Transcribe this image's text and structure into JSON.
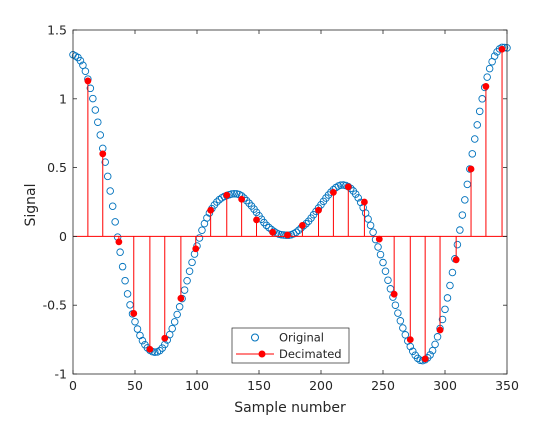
{
  "chart_data": {
    "type": "scatter",
    "title": "",
    "xlabel": "Sample number",
    "ylabel": "Signal",
    "xlim": [
      0,
      350
    ],
    "ylim": [
      -1,
      1.5
    ],
    "xticks": [
      "0",
      "50",
      "100",
      "150",
      "200",
      "250",
      "300",
      "350"
    ],
    "yticks": [
      "-1",
      "-0.5",
      "0",
      "0.5",
      "1",
      "1.5"
    ],
    "grid": false,
    "legend_position": "bottom-center",
    "series": [
      {
        "name": "Original",
        "style": "open-circle",
        "color": "#0072bd",
        "x_start": 0,
        "x_end": 350,
        "x_step": 2,
        "curve_points": [
          [
            0,
            1.32
          ],
          [
            5,
            1.29
          ],
          [
            10,
            1.2
          ],
          [
            15,
            1.04
          ],
          [
            20,
            0.83
          ],
          [
            25,
            0.59
          ],
          [
            30,
            0.33
          ],
          [
            35,
            0.05
          ],
          [
            40,
            -0.22
          ],
          [
            45,
            -0.46
          ],
          [
            50,
            -0.62
          ],
          [
            55,
            -0.74
          ],
          [
            60,
            -0.81
          ],
          [
            65,
            -0.84
          ],
          [
            70,
            -0.83
          ],
          [
            75,
            -0.77
          ],
          [
            80,
            -0.67
          ],
          [
            85,
            -0.54
          ],
          [
            90,
            -0.39
          ],
          [
            95,
            -0.22
          ],
          [
            100,
            -0.07
          ],
          [
            105,
            0.07
          ],
          [
            110,
            0.17
          ],
          [
            115,
            0.24
          ],
          [
            120,
            0.28
          ],
          [
            125,
            0.3
          ],
          [
            130,
            0.31
          ],
          [
            135,
            0.3
          ],
          [
            140,
            0.26
          ],
          [
            145,
            0.21
          ],
          [
            150,
            0.15
          ],
          [
            155,
            0.09
          ],
          [
            160,
            0.05
          ],
          [
            165,
            0.02
          ],
          [
            170,
            0.01
          ],
          [
            175,
            0.01
          ],
          [
            180,
            0.03
          ],
          [
            185,
            0.07
          ],
          [
            190,
            0.11
          ],
          [
            195,
            0.17
          ],
          [
            200,
            0.23
          ],
          [
            205,
            0.29
          ],
          [
            210,
            0.34
          ],
          [
            215,
            0.37
          ],
          [
            220,
            0.37
          ],
          [
            225,
            0.34
          ],
          [
            230,
            0.28
          ],
          [
            235,
            0.19
          ],
          [
            240,
            0.08
          ],
          [
            245,
            -0.05
          ],
          [
            250,
            -0.19
          ],
          [
            255,
            -0.35
          ],
          [
            260,
            -0.5
          ],
          [
            265,
            -0.64
          ],
          [
            270,
            -0.76
          ],
          [
            275,
            -0.85
          ],
          [
            280,
            -0.9
          ],
          [
            285,
            -0.89
          ],
          [
            290,
            -0.83
          ],
          [
            295,
            -0.7
          ],
          [
            300,
            -0.53
          ],
          [
            305,
            -0.31
          ],
          [
            310,
            -0.06
          ],
          [
            315,
            0.21
          ],
          [
            320,
            0.49
          ],
          [
            325,
            0.76
          ],
          [
            330,
            1.0
          ],
          [
            335,
            1.19
          ],
          [
            340,
            1.31
          ],
          [
            345,
            1.37
          ],
          [
            350,
            1.37
          ]
        ]
      },
      {
        "name": "Decimated",
        "style": "stem",
        "color": "#ff0000",
        "x": [
          12,
          24,
          37,
          49,
          62,
          74,
          87,
          99,
          111,
          124,
          136,
          148,
          161,
          173,
          185,
          198,
          210,
          222,
          235,
          247,
          259,
          272,
          284,
          296,
          309,
          321,
          333,
          346
        ],
        "values": [
          1.13,
          0.6,
          -0.04,
          -0.56,
          -0.82,
          -0.74,
          -0.45,
          -0.09,
          0.19,
          0.3,
          0.27,
          0.12,
          0.03,
          0.01,
          0.08,
          0.19,
          0.32,
          0.36,
          0.25,
          -0.02,
          -0.42,
          -0.75,
          -0.89,
          -0.68,
          -0.17,
          0.49,
          1.09,
          1.36
        ]
      }
    ]
  }
}
